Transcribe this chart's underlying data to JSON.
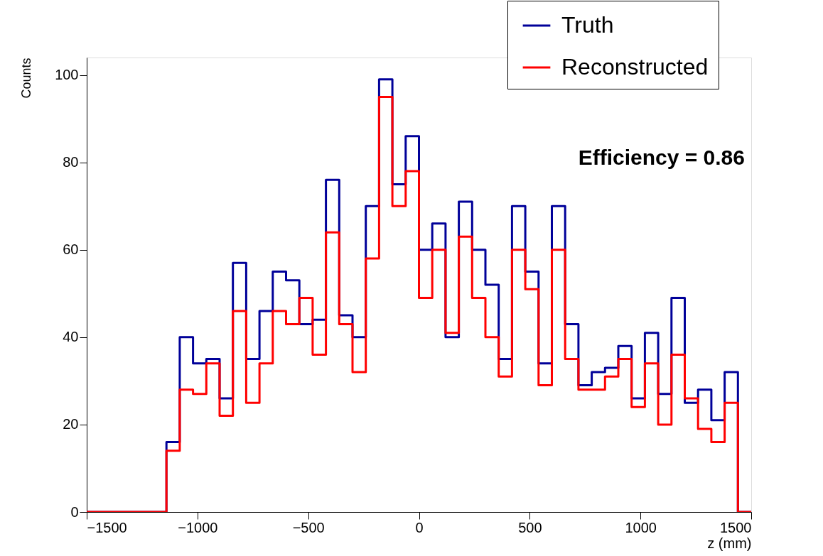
{
  "chart_data": {
    "type": "histogram",
    "xlabel": "z (mm)",
    "ylabel": "Counts",
    "bins": [
      -1500,
      -1440,
      -1380,
      -1320,
      -1260,
      -1200,
      -1140,
      -1080,
      -1020,
      -960,
      -900,
      -840,
      -780,
      -720,
      -660,
      -600,
      -540,
      -480,
      -420,
      -360,
      -300,
      -240,
      -180,
      -120,
      -60,
      0,
      60,
      120,
      180,
      240,
      300,
      360,
      420,
      480,
      540,
      600,
      660,
      720,
      780,
      840,
      900,
      960,
      1020,
      1080,
      1140,
      1200,
      1260,
      1320,
      1380,
      1440,
      1500
    ],
    "series": [
      {
        "name": "Truth",
        "color": "#000099",
        "values": [
          0,
          0,
          0,
          0,
          0,
          0,
          16,
          40,
          34,
          35,
          26,
          57,
          35,
          46,
          55,
          53,
          43,
          44,
          76,
          45,
          40,
          70,
          99,
          75,
          86,
          60,
          66,
          40,
          71,
          60,
          52,
          35,
          70,
          55,
          34,
          70,
          43,
          29,
          32,
          33,
          38,
          26,
          41,
          27,
          49,
          25,
          28,
          21,
          32,
          0
        ]
      },
      {
        "name": "Reconstructed",
        "color": "#ff0000",
        "values": [
          0,
          0,
          0,
          0,
          0,
          0,
          14,
          28,
          27,
          34,
          22,
          46,
          25,
          34,
          46,
          43,
          49,
          36,
          64,
          43,
          32,
          58,
          95,
          70,
          78,
          49,
          60,
          41,
          63,
          49,
          40,
          31,
          60,
          51,
          29,
          60,
          35,
          28,
          28,
          31,
          35,
          24,
          34,
          20,
          36,
          26,
          19,
          16,
          25,
          0
        ]
      }
    ],
    "xlim": [
      -1500,
      1500
    ],
    "xticks": [
      {
        "value": -1500,
        "label": "−1500"
      },
      {
        "value": -1000,
        "label": "−1000"
      },
      {
        "value": -500,
        "label": "−500"
      },
      0,
      500,
      1000,
      1500
    ],
    "ylim": [
      0,
      104
    ],
    "yticks": [
      0,
      20,
      40,
      60,
      80,
      100
    ],
    "annotations": [
      "Efficiency = 0.86"
    ],
    "legend": "top right",
    "grid": false,
    "line_style": "solid"
  }
}
